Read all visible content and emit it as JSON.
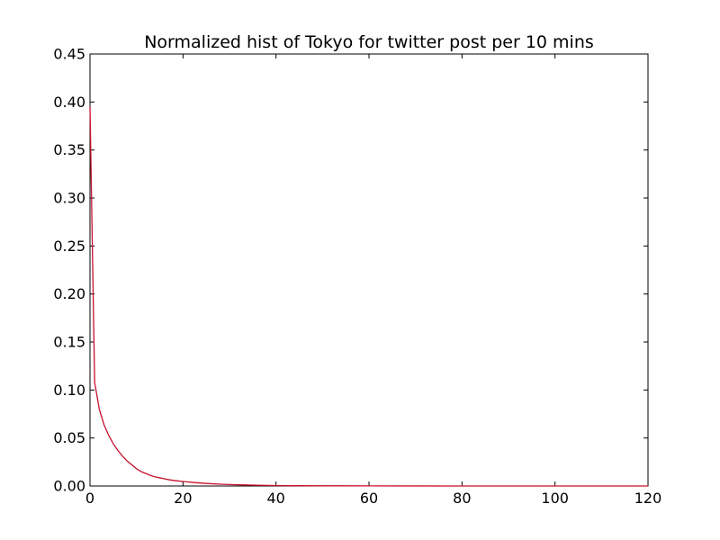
{
  "chart_data": {
    "type": "line",
    "title": "Normalized hist of Tokyo for twitter post per 10 mins",
    "xlabel": "",
    "ylabel": "",
    "xlim": [
      0,
      120
    ],
    "ylim": [
      0,
      0.45
    ],
    "xticks": [
      0,
      20,
      40,
      60,
      80,
      100,
      120
    ],
    "yticks": [
      "0.00",
      "0.05",
      "0.10",
      "0.15",
      "0.20",
      "0.25",
      "0.30",
      "0.35",
      "0.40",
      "0.45"
    ],
    "grid": false,
    "legend": "none",
    "series": [
      {
        "color": "#c8102e",
        "x": [
          0,
          1,
          2,
          3,
          4,
          5,
          6,
          7,
          8,
          9,
          10,
          11,
          12,
          13,
          14,
          15,
          16,
          17,
          18,
          19,
          20,
          22,
          24,
          26,
          28,
          30,
          33,
          36,
          40,
          45,
          50,
          60,
          70,
          80,
          90,
          100,
          110,
          120
        ],
        "y": [
          0.395,
          0.108,
          0.08,
          0.064,
          0.053,
          0.044,
          0.037,
          0.031,
          0.026,
          0.022,
          0.018,
          0.015,
          0.013,
          0.011,
          0.0095,
          0.0085,
          0.0075,
          0.0065,
          0.0058,
          0.0052,
          0.0047,
          0.0038,
          0.003,
          0.0024,
          0.0019,
          0.0015,
          0.0011,
          0.0008,
          0.0005,
          0.0003,
          0.0002,
          0.0001,
          5e-05,
          3e-05,
          2e-05,
          1e-05,
          1e-05,
          0.0
        ]
      }
    ]
  }
}
